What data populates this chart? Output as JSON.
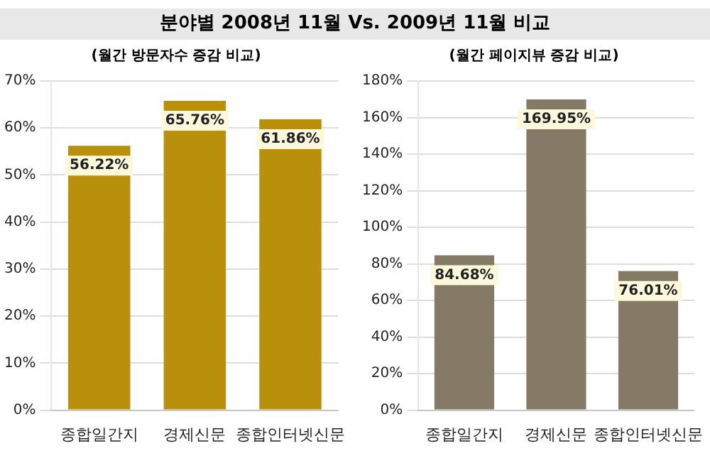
{
  "chart_data": [
    {
      "type": "bar",
      "title": "분야별 2008년 11월 Vs. 2009년 11월 비교",
      "subtitle": "(월간 방문자수 증감 비교)",
      "categories": [
        "종합일간지",
        "경제신문",
        "종합인터넷신문"
      ],
      "values": [
        56.22,
        65.76,
        61.86
      ],
      "value_labels": [
        "56.22%",
        "65.76%",
        "61.86%"
      ],
      "color": "#b8900c",
      "ylim": [
        0,
        70
      ],
      "yticks": [
        {
          "value": 0,
          "label": "0%"
        },
        {
          "value": 10,
          "label": "10%"
        },
        {
          "value": 20,
          "label": "20%"
        },
        {
          "value": 30,
          "label": "30%"
        },
        {
          "value": 40,
          "label": "40%"
        },
        {
          "value": 50,
          "label": "50%"
        },
        {
          "value": 60,
          "label": "60%"
        },
        {
          "value": 70,
          "label": "70%"
        }
      ],
      "grid": "y",
      "legend": false
    },
    {
      "type": "bar",
      "subtitle": "(월간 페이지뷰 증감 비교)",
      "categories": [
        "종합일간지",
        "경제신문",
        "종합인터넷신문"
      ],
      "values": [
        84.68,
        169.95,
        76.01
      ],
      "value_labels": [
        "84.68%",
        "169.95%",
        "76.01%"
      ],
      "color": "#857a66",
      "ylim": [
        0,
        180
      ],
      "yticks": [
        {
          "value": 0,
          "label": "0%"
        },
        {
          "value": 20,
          "label": "20%"
        },
        {
          "value": 40,
          "label": "40%"
        },
        {
          "value": 60,
          "label": "60%"
        },
        {
          "value": 80,
          "label": "80%"
        },
        {
          "value": 100,
          "label": "100%"
        },
        {
          "value": 120,
          "label": "120%"
        },
        {
          "value": 140,
          "label": "140%"
        },
        {
          "value": 160,
          "label": "160%"
        },
        {
          "value": 180,
          "label": "180%"
        }
      ],
      "grid": "y",
      "legend": false
    }
  ]
}
